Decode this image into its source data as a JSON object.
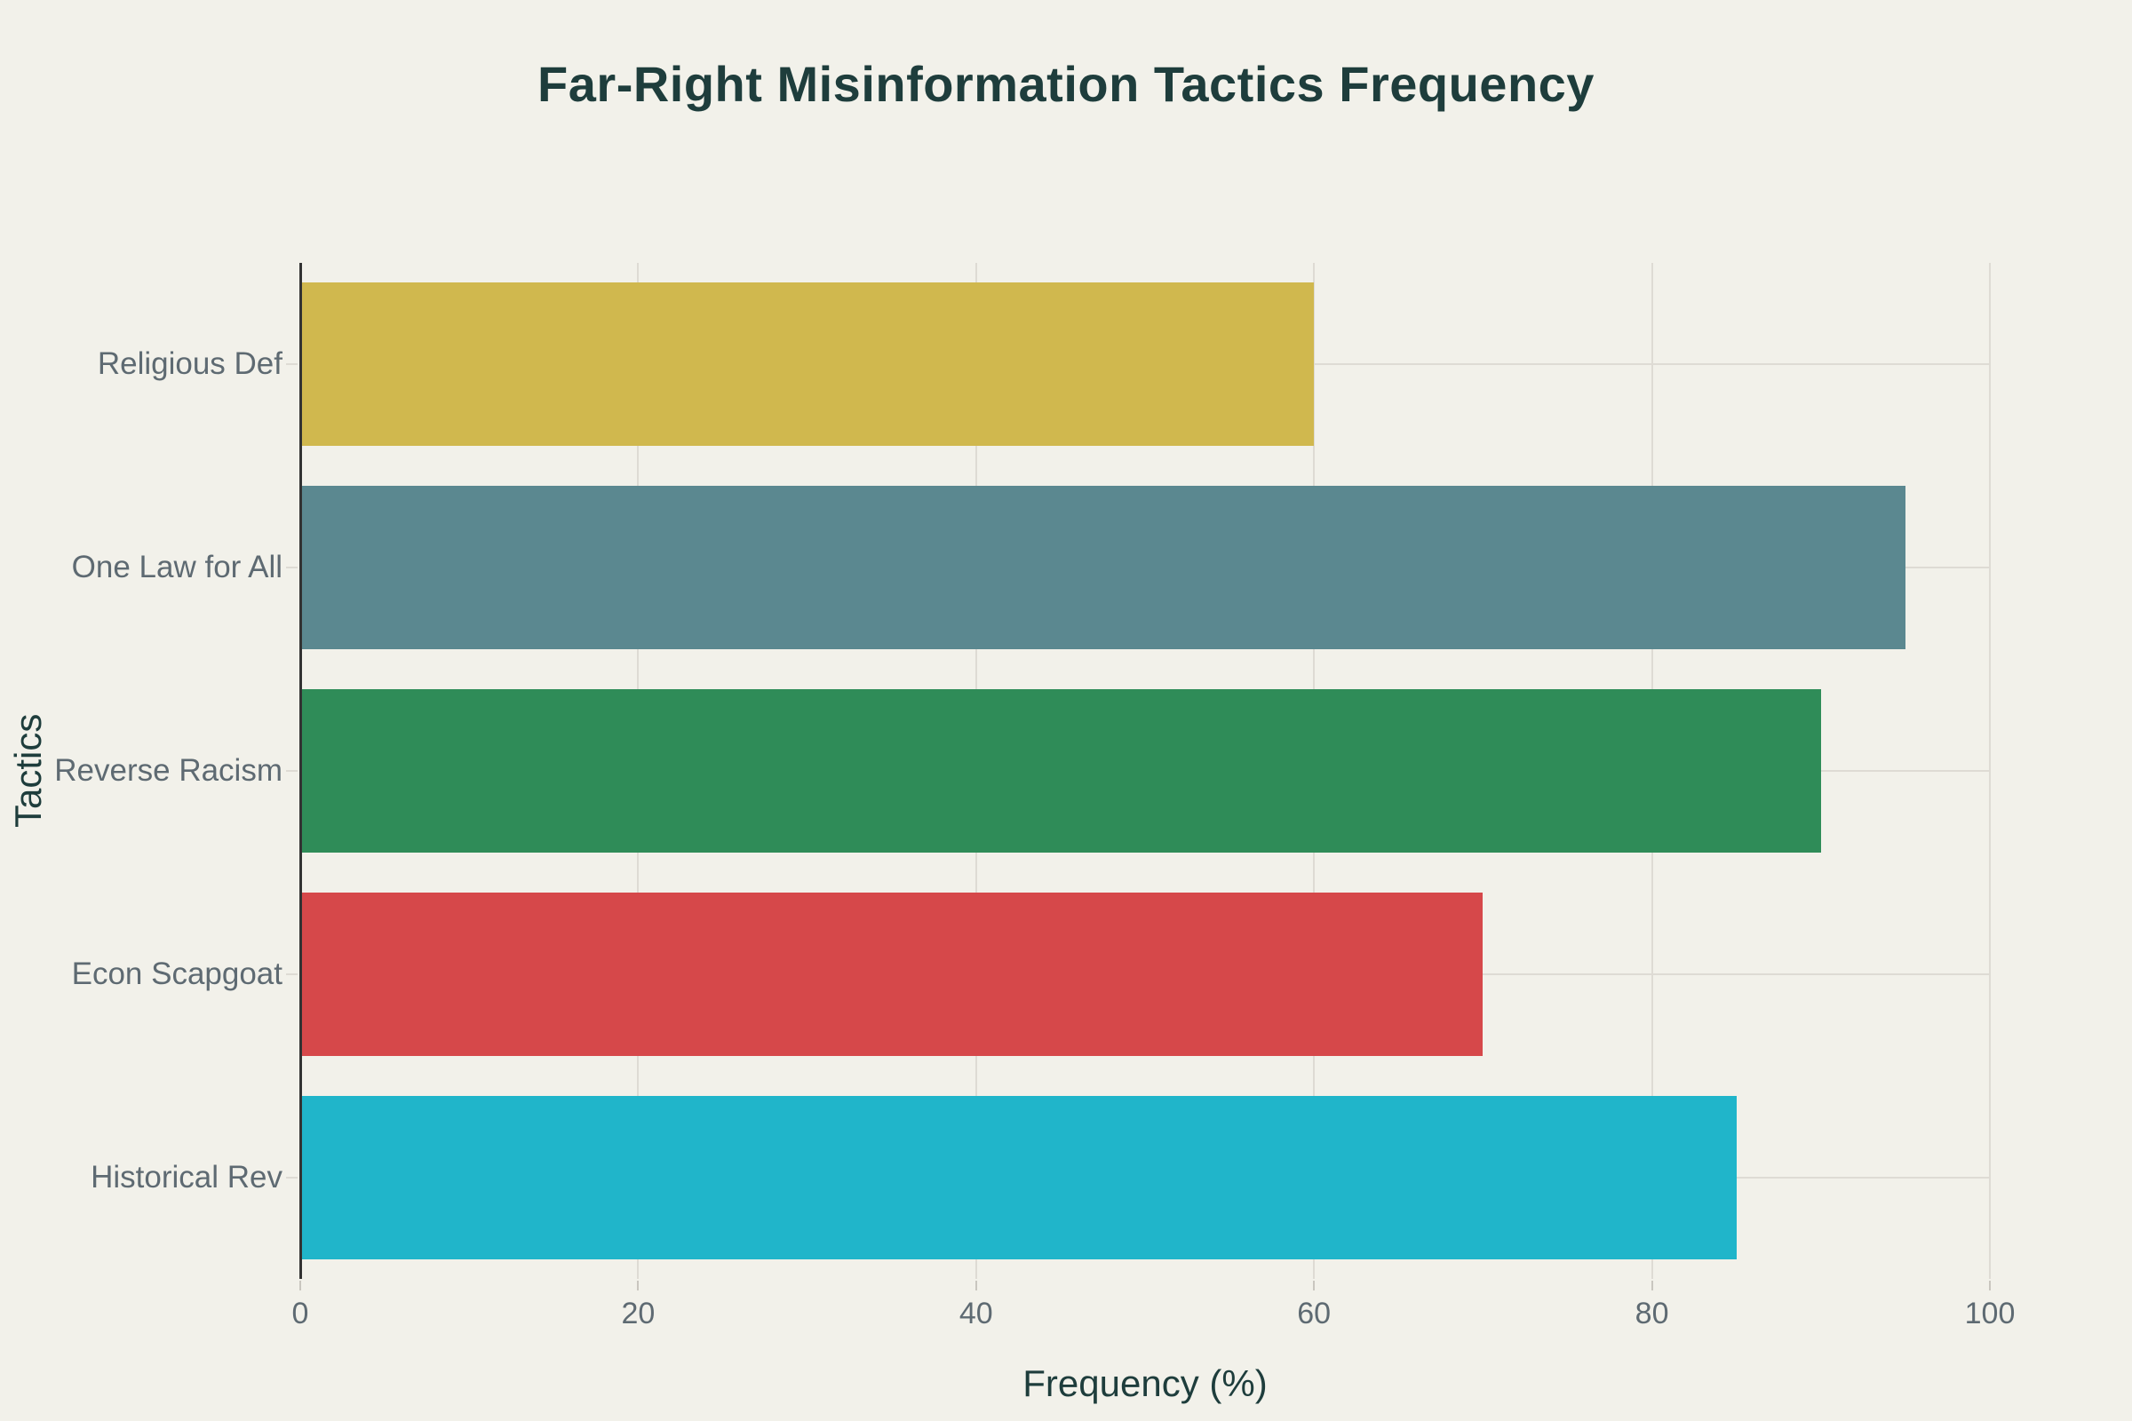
{
  "colors": {
    "background": "#f2f1ea",
    "title_text": "#1e3d3c",
    "axis_title_text": "#1e3d3c",
    "tick_label_text": "#5e6a72",
    "gridline": "#dedbd4",
    "axis_line": "#333333"
  },
  "chart_data": {
    "type": "bar",
    "orientation": "horizontal",
    "title": "Far-Right Misinformation Tactics Frequency",
    "xlabel": "Frequency (%)",
    "ylabel": "Tactics",
    "categories": [
      "Religious Def",
      "One Law for All",
      "Reverse Racism",
      "Econ Scapgoat",
      "Historical Rev"
    ],
    "values": [
      60,
      95,
      90,
      70,
      85
    ],
    "bar_colors": [
      "#d0b84e",
      "#5b8890",
      "#2f8c58",
      "#d6484a",
      "#20b5ca"
    ],
    "xticks": [
      0,
      20,
      40,
      60,
      80,
      100
    ],
    "xlim": [
      0,
      100
    ],
    "grid": true,
    "legend_visible": false
  }
}
